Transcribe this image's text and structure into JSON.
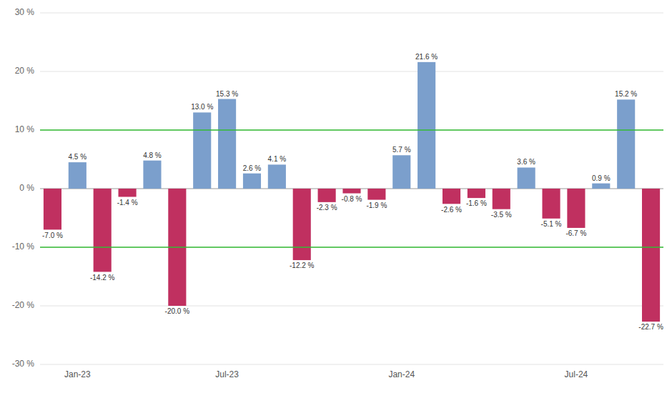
{
  "chart_data": {
    "type": "bar",
    "categories": [
      null,
      "Jan-23",
      null,
      null,
      null,
      null,
      null,
      "Jul-23",
      null,
      null,
      null,
      null,
      null,
      null,
      "Jan-24",
      null,
      null,
      null,
      null,
      null,
      null,
      "Jul-24",
      null,
      null,
      null
    ],
    "values": [
      -7.0,
      4.5,
      -14.2,
      -1.4,
      4.8,
      -20.0,
      13.0,
      15.3,
      2.6,
      4.1,
      -12.2,
      -2.3,
      -0.8,
      -1.9,
      5.7,
      21.6,
      -2.6,
      -1.6,
      -3.5,
      3.6,
      -5.1,
      -6.7,
      0.9,
      15.2,
      -22.7
    ],
    "value_labels": [
      "-7.0 %",
      "4.5 %",
      "-14.2 %",
      "-1.4 %",
      "4.8 %",
      "-20.0 %",
      "13.0 %",
      "15.3 %",
      "2.6 %",
      "4.1 %",
      "-12.2 %",
      "-2.3 %",
      "-0.8 %",
      "-1.9 %",
      "5.7 %",
      "21.6 %",
      "-2.6 %",
      "-1.6 %",
      "-3.5 %",
      "3.6 %",
      "-5.1 %",
      "-6.7 %",
      "0.9 %",
      "15.2 %",
      "-22.7 %"
    ],
    "colors": [
      "#C03060",
      "#7B9FCC",
      "#C03060",
      "#C03060",
      "#7B9FCC",
      "#C03060",
      "#7B9FCC",
      "#7B9FCC",
      "#7B9FCC",
      "#7B9FCC",
      "#C03060",
      "#C03060",
      "#C03060",
      "#C03060",
      "#7B9FCC",
      "#7B9FCC",
      "#C03060",
      "#C03060",
      "#C03060",
      "#7B9FCC",
      "#C03060",
      "#C03060",
      "#7B9FCC",
      "#7B9FCC",
      "#C03060"
    ],
    "ylim": [
      -30,
      30
    ],
    "yticks": [
      {
        "value": -30,
        "label": "-30 %"
      },
      {
        "value": -20,
        "label": "-20 %"
      },
      {
        "value": -10,
        "label": "-10 %"
      },
      {
        "value": 0,
        "label": "0 %"
      },
      {
        "value": 10,
        "label": "10 %"
      },
      {
        "value": 20,
        "label": "20 %"
      },
      {
        "value": 30,
        "label": "30 %"
      }
    ],
    "reference_lines": [
      {
        "value": 10,
        "color": "#33BB33"
      },
      {
        "value": -10,
        "color": "#33BB33"
      }
    ],
    "grid": true,
    "data_labels": true
  }
}
